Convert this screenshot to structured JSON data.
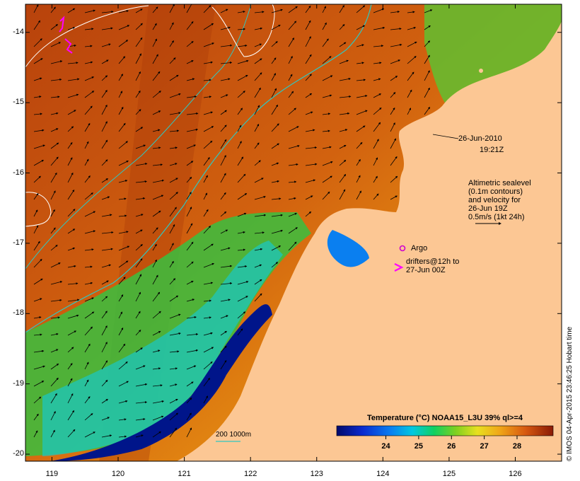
{
  "map": {
    "y_ticks": [
      {
        "value": -14,
        "label": "-14"
      },
      {
        "value": -15,
        "label": "-15"
      },
      {
        "value": -16,
        "label": "-16"
      },
      {
        "value": -17,
        "label": "-17"
      },
      {
        "value": -18,
        "label": "-18"
      },
      {
        "value": -19,
        "label": "-19"
      },
      {
        "value": -20,
        "label": "-20"
      }
    ],
    "x_ticks": [
      {
        "value": 119,
        "label": "119"
      },
      {
        "value": 120,
        "label": "120"
      },
      {
        "value": 121,
        "label": "121"
      },
      {
        "value": 122,
        "label": "122"
      },
      {
        "value": 123,
        "label": "123"
      },
      {
        "value": 124,
        "label": "124"
      },
      {
        "value": 125,
        "label": "125"
      },
      {
        "value": 126,
        "label": "126"
      }
    ],
    "lon_range": [
      118.6,
      126.7
    ],
    "lat_range": [
      -20.1,
      -13.6
    ],
    "colors": {
      "land": "#fcc794",
      "warm": "#bd4a0c",
      "cool": "#00158a",
      "contour": "#2fc7c0"
    }
  },
  "annotations": {
    "date": "26-Jun-2010",
    "time": "19:21Z",
    "altimetry": [
      "Altimetric sealevel",
      "(0.1m contours)",
      "and velocity for",
      "26-Jun 19Z",
      "0.5m/s (1kt 24h)"
    ],
    "argo_label": "Argo",
    "drifters": [
      "drifters@12h to",
      "27-Jun 00Z"
    ],
    "bathy_label": "200  1000m"
  },
  "colorbar": {
    "title": "Temperature (°C) NOAA15_L3U 39% ql>=4",
    "ticks": [
      {
        "value": 24,
        "label": "24"
      },
      {
        "value": 25,
        "label": "25"
      },
      {
        "value": 26,
        "label": "26"
      },
      {
        "value": 27,
        "label": "27"
      },
      {
        "value": 28,
        "label": "28"
      }
    ],
    "range": [
      22.5,
      29.1
    ]
  },
  "credit": "© IMOS 04-Apr-2015 23:46:25 Hobart time"
}
